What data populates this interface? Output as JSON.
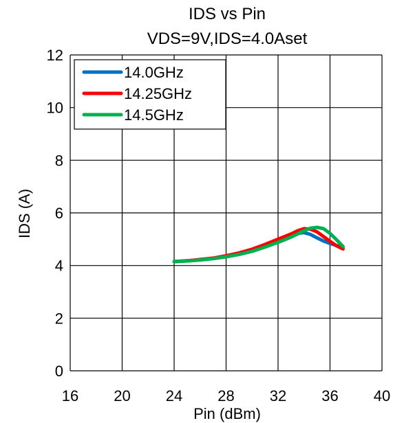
{
  "chart_data": {
    "type": "line",
    "title": "IDS vs Pin",
    "subtitle": "VDS=9V,IDS=4.0Aset",
    "xlabel": "Pin (dBm)",
    "ylabel": "IDS (A)",
    "xlim": [
      16,
      40
    ],
    "ylim": [
      0,
      12
    ],
    "xticks": [
      16,
      20,
      24,
      28,
      32,
      36,
      40
    ],
    "yticks": [
      0,
      2,
      4,
      6,
      8,
      10,
      12
    ],
    "grid": true,
    "legend_position": "top-left",
    "series": [
      {
        "name": "14.0GHz",
        "color": "#0070C0",
        "x": [
          24,
          25,
          26,
          27,
          28,
          29,
          30,
          31,
          32,
          33,
          33.5,
          34,
          34.5,
          35,
          35.5,
          36,
          36.5,
          37
        ],
        "y": [
          4.15,
          4.18,
          4.22,
          4.27,
          4.35,
          4.45,
          4.57,
          4.73,
          4.92,
          5.13,
          5.22,
          5.25,
          5.18,
          5.05,
          4.93,
          4.84,
          4.76,
          4.7
        ]
      },
      {
        "name": "14.25GHz",
        "color": "#FF0000",
        "x": [
          24,
          25,
          26,
          27,
          28,
          29,
          30,
          31,
          32,
          33,
          33.5,
          34,
          34.5,
          35,
          35.5,
          36,
          36.5,
          37
        ],
        "y": [
          4.15,
          4.18,
          4.23,
          4.28,
          4.37,
          4.48,
          4.62,
          4.8,
          5.0,
          5.2,
          5.32,
          5.4,
          5.38,
          5.28,
          5.1,
          4.92,
          4.75,
          4.63
        ]
      },
      {
        "name": "14.5GHz",
        "color": "#00B050",
        "x": [
          24,
          25,
          26,
          27,
          28,
          29,
          30,
          31,
          32,
          33,
          33.5,
          34,
          34.5,
          35,
          35.5,
          36,
          36.5,
          37
        ],
        "y": [
          4.15,
          4.17,
          4.21,
          4.26,
          4.33,
          4.42,
          4.54,
          4.7,
          4.88,
          5.08,
          5.2,
          5.32,
          5.42,
          5.45,
          5.4,
          5.22,
          4.98,
          4.72
        ]
      }
    ]
  }
}
